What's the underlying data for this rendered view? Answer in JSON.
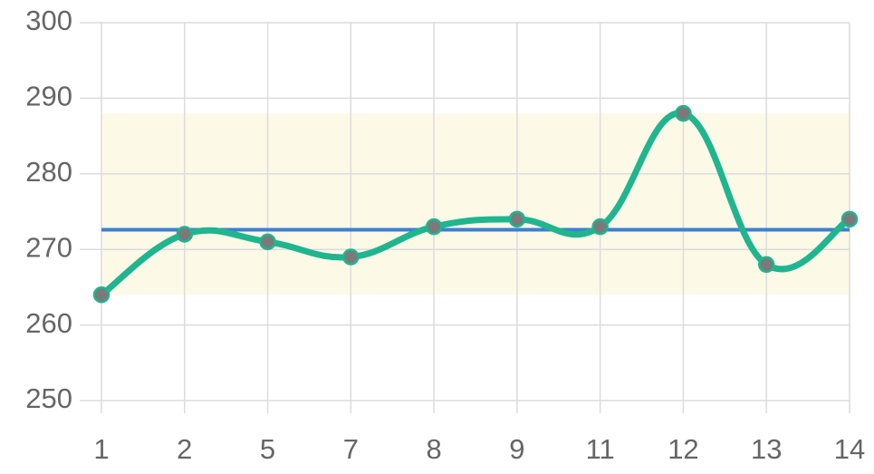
{
  "chart_data": {
    "type": "line",
    "categories": [
      "1",
      "2",
      "5",
      "7",
      "8",
      "9",
      "11",
      "12",
      "13",
      "14"
    ],
    "series": [
      {
        "color": "#1fb58f",
        "point_color": "#7a7a7a",
        "values": [
          264,
          272,
          271,
          269,
          273,
          274,
          273,
          288,
          268,
          274
        ]
      }
    ],
    "reference_band": {
      "from": 264,
      "to": 288,
      "color": "#fdf9e7"
    },
    "reference_line": {
      "value": 272.6,
      "color": "#3b7fd4"
    },
    "ylim": [
      250,
      300
    ],
    "yticks": [
      250,
      260,
      270,
      280,
      290,
      300
    ],
    "grid": true
  }
}
